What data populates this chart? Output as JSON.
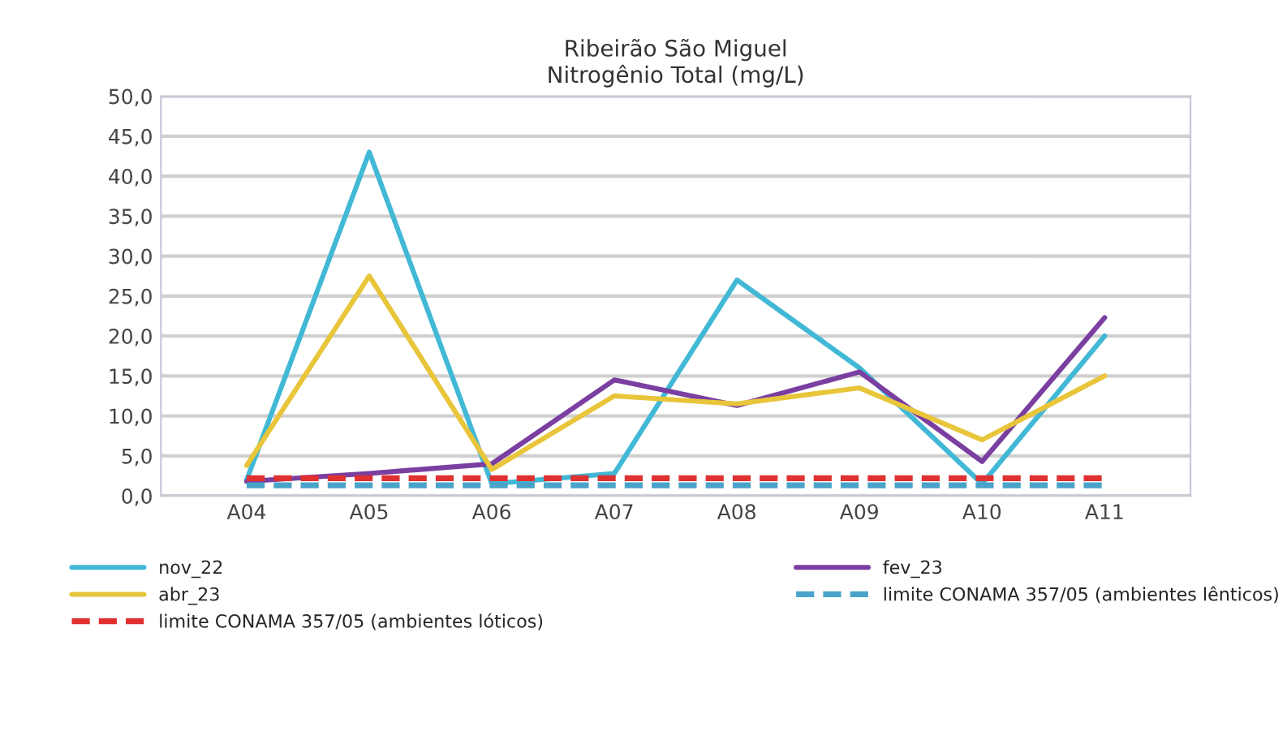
{
  "chart_data": {
    "type": "line",
    "title": "Ribeirão São Miguel\nNitrogênio Total (mg/L)",
    "categories": [
      "A04",
      "A05",
      "A06",
      "A07",
      "A08",
      "A09",
      "A10",
      "A11"
    ],
    "series": [
      {
        "name": "nov_22",
        "color": "#41b8d5",
        "values": [
          2.0,
          43.0,
          1.5,
          2.8,
          27.0,
          16.0,
          1.5,
          20.0
        ]
      },
      {
        "name": "fev_23",
        "color": "#7a3fa0",
        "values": [
          1.8,
          2.8,
          4.0,
          14.5,
          11.3,
          15.5,
          4.3,
          22.3
        ]
      },
      {
        "name": "abr_23",
        "color": "#e8c53a",
        "values": [
          3.8,
          27.5,
          3.3,
          12.5,
          11.5,
          13.5,
          7.0,
          15.0
        ]
      },
      {
        "name": "limite CONAMA 357/05 (ambientes lênticos)",
        "color": "#4aa3c8",
        "line_style": "dashed",
        "values": [
          1.3,
          1.3,
          1.3,
          1.3,
          1.3,
          1.3,
          1.3,
          1.3
        ]
      },
      {
        "name": "limite CONAMA 357/05 (ambientes lóticos)",
        "color": "#e03030",
        "line_style": "dashed",
        "values": [
          2.2,
          2.2,
          2.2,
          2.2,
          2.2,
          2.2,
          2.2,
          2.2
        ]
      }
    ],
    "ylim": [
      0,
      50
    ],
    "yticks": [
      {
        "value": 0,
        "label": "0,0"
      },
      {
        "value": 5,
        "label": "5,0"
      },
      {
        "value": 10,
        "label": "10,0"
      },
      {
        "value": 15,
        "label": "15,0"
      },
      {
        "value": 20,
        "label": "20,0"
      },
      {
        "value": 25,
        "label": "25,0"
      },
      {
        "value": 30,
        "label": "30,0"
      },
      {
        "value": 35,
        "label": "35,0"
      },
      {
        "value": 40,
        "label": "40,0"
      },
      {
        "value": 45,
        "label": "45,0"
      },
      {
        "value": 50,
        "label": "50,0"
      }
    ],
    "grid": "y",
    "legend": "bottom",
    "marker": "none",
    "line_style": "solid"
  }
}
